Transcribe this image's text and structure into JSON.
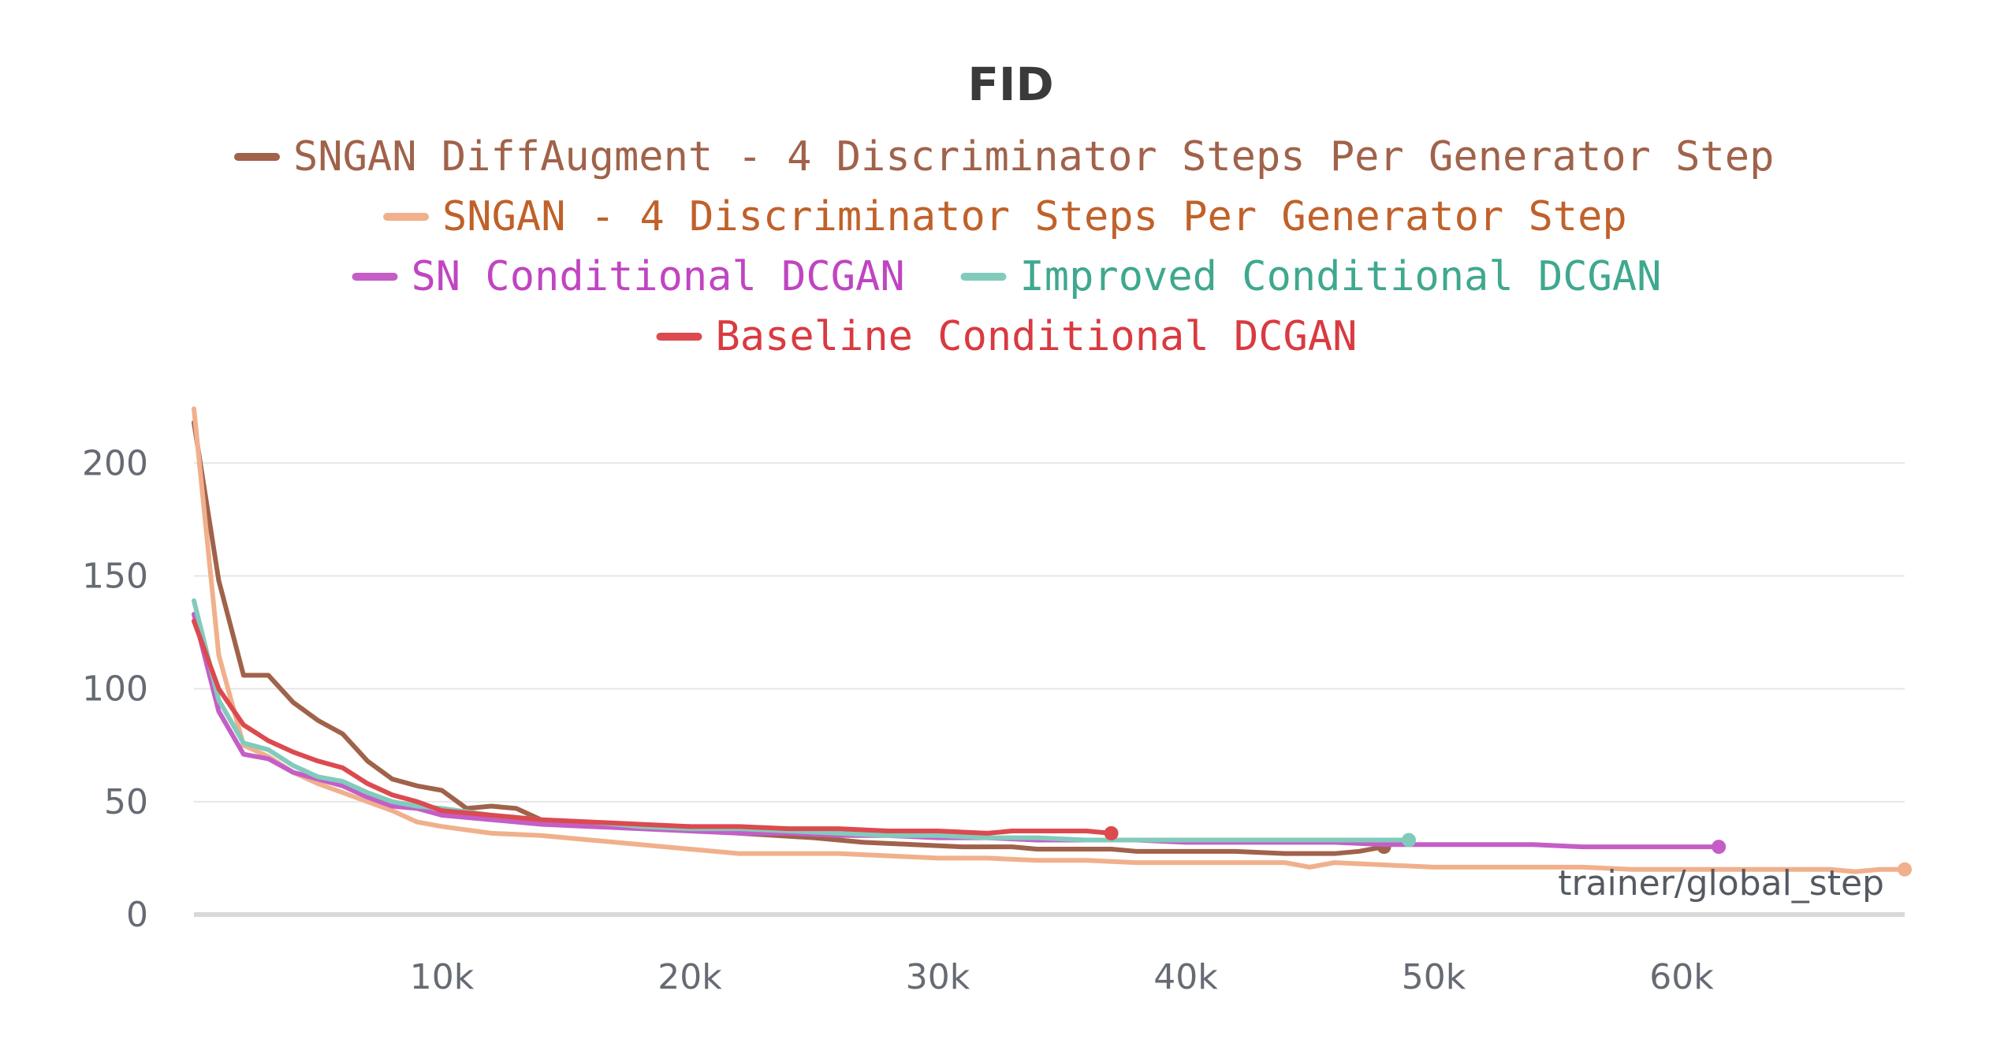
{
  "chart_data": {
    "type": "line",
    "title": "FID",
    "xlabel": "trainer/global_step",
    "ylabel": "",
    "xlim": [
      0,
      69000
    ],
    "ylim": [
      0,
      220
    ],
    "x_ticks": [
      10000,
      20000,
      30000,
      40000,
      50000,
      60000
    ],
    "x_tick_labels": [
      "10k",
      "20k",
      "30k",
      "40k",
      "50k",
      "60k"
    ],
    "y_ticks": [
      0,
      50,
      100,
      150,
      200
    ],
    "y_tick_labels": [
      "0",
      "50",
      "100",
      "150",
      "200"
    ],
    "grid": true,
    "legend_position": "top-center",
    "series": [
      {
        "name": "SNGAN DiffAugment - 4 Discriminator Steps Per Generator Step",
        "color": "#a0624a",
        "text_color": "#a0624a",
        "x": [
          0,
          1000,
          2000,
          3000,
          4000,
          5000,
          6000,
          7000,
          8000,
          9000,
          10000,
          11000,
          12000,
          13000,
          14000,
          15000,
          17000,
          20000,
          22000,
          25000,
          27000,
          29000,
          31000,
          33000,
          34000,
          35000,
          37000,
          38000,
          40000,
          42000,
          44000,
          46000,
          47000,
          48000
        ],
        "values": [
          218,
          148,
          106,
          106,
          94,
          86,
          80,
          68,
          60,
          57,
          55,
          47,
          48,
          47,
          42,
          41,
          39,
          39,
          36,
          34,
          32,
          31,
          30,
          30,
          29,
          29,
          29,
          28,
          28,
          28,
          27,
          27,
          28,
          30
        ],
        "end_marker": true
      },
      {
        "name": "SNGAN - 4 Discriminator Steps Per Generator Step",
        "color": "#f0b08c",
        "text_color": "#c0612a",
        "x": [
          0,
          1000,
          2000,
          3000,
          4000,
          5000,
          6000,
          7000,
          8000,
          9000,
          10000,
          12000,
          14000,
          16000,
          18000,
          20000,
          22000,
          24000,
          26000,
          28000,
          30000,
          32000,
          34000,
          36000,
          38000,
          40000,
          42000,
          44000,
          45000,
          46000,
          48000,
          50000,
          52000,
          54000,
          56000,
          58000,
          60000,
          62000,
          64000,
          66000,
          67000,
          68000,
          69000
        ],
        "values": [
          224,
          115,
          75,
          70,
          63,
          58,
          54,
          50,
          46,
          41,
          39,
          36,
          35,
          33,
          31,
          29,
          27,
          27,
          27,
          26,
          25,
          25,
          24,
          24,
          23,
          23,
          23,
          23,
          21,
          23,
          22,
          21,
          21,
          21,
          21,
          20,
          20,
          20,
          20,
          20,
          19,
          20,
          20
        ],
        "end_marker": true
      },
      {
        "name": "SN Conditional DCGAN",
        "color": "#c45ec6",
        "text_color": "#c045c2",
        "x": [
          0,
          1000,
          2000,
          3000,
          4000,
          5000,
          6000,
          7000,
          8000,
          9000,
          10000,
          12000,
          14000,
          16000,
          18000,
          20000,
          22000,
          24000,
          26000,
          28000,
          30000,
          32000,
          34000,
          36000,
          38000,
          40000,
          42000,
          44000,
          46000,
          48000,
          50000,
          52000,
          54000,
          56000,
          58000,
          60000,
          61500
        ],
        "values": [
          133,
          90,
          71,
          69,
          63,
          60,
          57,
          52,
          48,
          47,
          44,
          42,
          40,
          39,
          38,
          37,
          36,
          36,
          35,
          35,
          34,
          34,
          33,
          33,
          33,
          32,
          32,
          32,
          32,
          31,
          31,
          31,
          31,
          30,
          30,
          30,
          30
        ],
        "end_marker": true
      },
      {
        "name": "Improved Conditional DCGAN",
        "color": "#82cbbc",
        "text_color": "#3fa88f",
        "x": [
          0,
          1000,
          2000,
          3000,
          4000,
          5000,
          6000,
          7000,
          8000,
          9000,
          10000,
          12000,
          14000,
          16000,
          18000,
          20000,
          22000,
          24000,
          26000,
          28000,
          30000,
          32000,
          34000,
          36000,
          38000,
          40000,
          42000,
          44000,
          46000,
          48000,
          49000
        ],
        "values": [
          139,
          95,
          76,
          73,
          66,
          61,
          59,
          54,
          50,
          48,
          47,
          44,
          42,
          41,
          39,
          38,
          38,
          37,
          36,
          35,
          35,
          34,
          34,
          33,
          33,
          33,
          33,
          33,
          33,
          33,
          33
        ],
        "end_marker": true
      },
      {
        "name": "Baseline Conditional DCGAN",
        "color": "#dc4a4f",
        "text_color": "#d93a40",
        "x": [
          0,
          1000,
          2000,
          3000,
          4000,
          5000,
          6000,
          7000,
          8000,
          9000,
          10000,
          12000,
          14000,
          16000,
          18000,
          20000,
          22000,
          24000,
          26000,
          28000,
          30000,
          32000,
          33000,
          35000,
          36000,
          37000
        ],
        "values": [
          130,
          100,
          84,
          77,
          72,
          68,
          65,
          58,
          53,
          50,
          46,
          44,
          42,
          41,
          40,
          39,
          39,
          38,
          38,
          37,
          37,
          36,
          37,
          37,
          37,
          36
        ],
        "end_marker": true
      }
    ]
  }
}
